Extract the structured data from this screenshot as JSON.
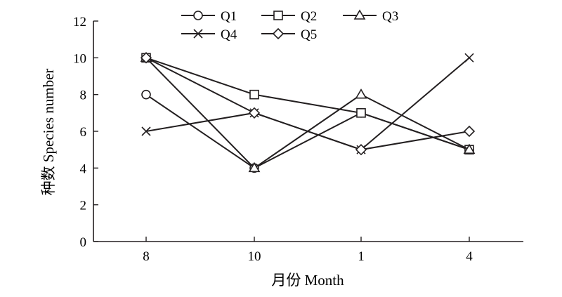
{
  "chart_data": {
    "type": "line",
    "categories": [
      "8",
      "10",
      "1",
      "4"
    ],
    "xlabel": "月份 Month",
    "ylabel": "种数 Species number",
    "ylim": [
      0,
      12
    ],
    "yticks": [
      0,
      2,
      4,
      6,
      8,
      10,
      12
    ],
    "grid": false,
    "legend_position": "top",
    "series": [
      {
        "name": "Q1",
        "marker": "circle",
        "values": [
          8,
          4,
          7,
          5
        ]
      },
      {
        "name": "Q2",
        "marker": "square",
        "values": [
          10,
          8,
          7,
          5
        ]
      },
      {
        "name": "Q3",
        "marker": "triangle",
        "values": [
          10,
          4,
          8,
          5
        ]
      },
      {
        "name": "Q4",
        "marker": "x",
        "values": [
          6,
          7,
          5,
          10
        ]
      },
      {
        "name": "Q5",
        "marker": "diamond",
        "values": [
          10,
          7,
          5,
          6
        ]
      }
    ],
    "line_color": "#231f20"
  }
}
